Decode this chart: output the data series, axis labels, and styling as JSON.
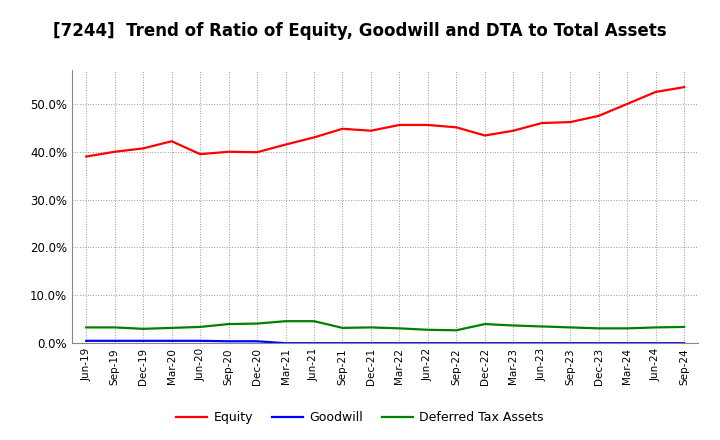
{
  "title": "[7244]  Trend of Ratio of Equity, Goodwill and DTA to Total Assets",
  "x_labels": [
    "Jun-19",
    "Sep-19",
    "Dec-19",
    "Mar-20",
    "Jun-20",
    "Sep-20",
    "Dec-20",
    "Mar-21",
    "Jun-21",
    "Sep-21",
    "Dec-21",
    "Mar-22",
    "Jun-22",
    "Sep-22",
    "Dec-22",
    "Mar-23",
    "Jun-23",
    "Sep-23",
    "Dec-23",
    "Mar-24",
    "Jun-24",
    "Sep-24"
  ],
  "equity": [
    0.39,
    0.4,
    0.407,
    0.422,
    0.395,
    0.4,
    0.399,
    0.415,
    0.43,
    0.448,
    0.444,
    0.456,
    0.456,
    0.451,
    0.434,
    0.444,
    0.46,
    0.462,
    0.475,
    0.5,
    0.525,
    0.535
  ],
  "goodwill": [
    0.005,
    0.005,
    0.005,
    0.005,
    0.005,
    0.004,
    0.004,
    0.0,
    0.0,
    0.0,
    0.0,
    0.0,
    0.0,
    0.0,
    0.0,
    0.0,
    0.0,
    0.0,
    0.0,
    0.0,
    0.0,
    0.0
  ],
  "dta": [
    0.033,
    0.033,
    0.03,
    0.032,
    0.034,
    0.04,
    0.041,
    0.046,
    0.046,
    0.032,
    0.033,
    0.031,
    0.028,
    0.027,
    0.04,
    0.037,
    0.035,
    0.033,
    0.031,
    0.031,
    0.033,
    0.034
  ],
  "equity_color": "#ff0000",
  "goodwill_color": "#0000ff",
  "dta_color": "#008000",
  "background_color": "#ffffff",
  "plot_bg_color": "#ffffff",
  "grid_color": "#999999",
  "ylim": [
    0.0,
    0.57
  ],
  "yticks": [
    0.0,
    0.1,
    0.2,
    0.3,
    0.4,
    0.5
  ],
  "legend_labels": [
    "Equity",
    "Goodwill",
    "Deferred Tax Assets"
  ],
  "line_width": 1.6,
  "title_fontsize": 12
}
